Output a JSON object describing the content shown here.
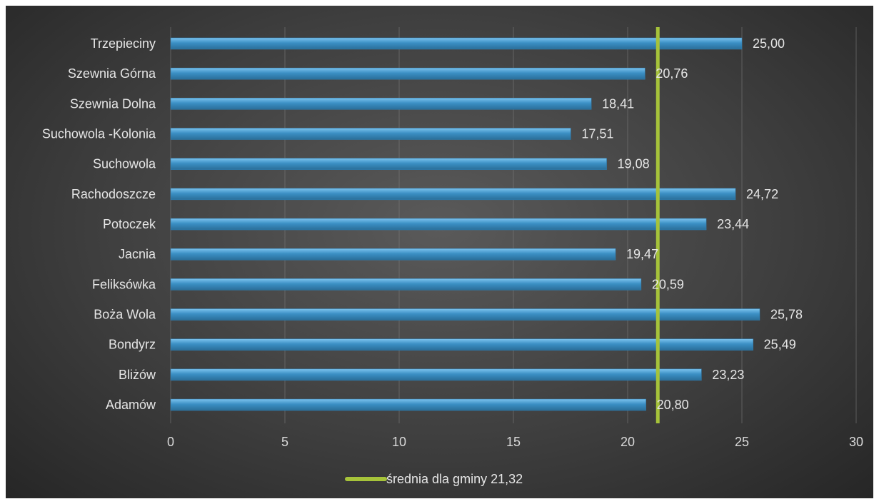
{
  "chart_data": {
    "type": "bar",
    "orientation": "horizontal",
    "categories": [
      "Trzepieciny",
      "Szewnia Górna",
      "Szewnia Dolna",
      "Suchowola -Kolonia",
      "Suchowola",
      "Rachodoszcze",
      "Potoczek",
      "Jacnia",
      "Feliksówka",
      "Boża Wola",
      "Bondyrz",
      "Bliżów",
      "Adamów"
    ],
    "values": [
      25.0,
      20.76,
      18.41,
      17.51,
      19.08,
      24.72,
      23.44,
      19.47,
      20.59,
      25.78,
      25.49,
      23.23,
      20.8
    ],
    "value_labels": [
      "25,00",
      "20,76",
      "18,41",
      "17,51",
      "19,08",
      "24,72",
      "23,44",
      "19,47",
      "20,59",
      "25,78",
      "25,49",
      "23,23",
      "20,80"
    ],
    "xlim": [
      0,
      30
    ],
    "xticks": [
      0,
      5,
      10,
      15,
      20,
      25,
      30
    ],
    "reference_line": {
      "value": 21.32,
      "label": "średnia dla gminy 21,32"
    },
    "grid": "vertical",
    "legend_position": "bottom",
    "colors": {
      "bar": "#3b8fc4",
      "bar_highlight": "#6fb8e6",
      "reference_line": "#a6c33a",
      "gridline": "#7a7a7a"
    }
  }
}
